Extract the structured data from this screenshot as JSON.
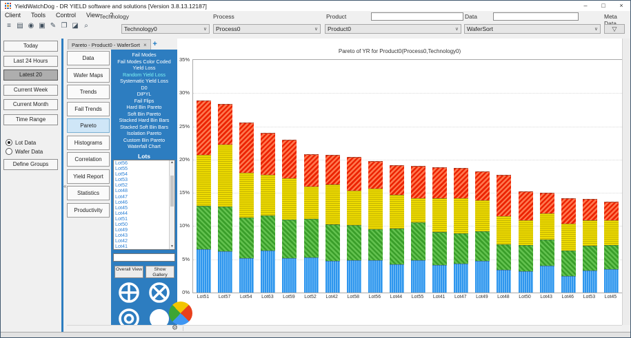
{
  "window": {
    "title": "YieldWatchDog - DR YIELD software and solutions [Version 3.8.13.12187]",
    "controls": [
      {
        "name": "minimize-button",
        "glyph": "–"
      },
      {
        "name": "maximize-button",
        "glyph": "□"
      },
      {
        "name": "close-button",
        "glyph": "×"
      }
    ]
  },
  "menu_bar": {
    "items": [
      "Client",
      "Tools",
      "Control",
      "View",
      "?"
    ]
  },
  "toolbar": {
    "icons": [
      {
        "name": "layout-icon",
        "glyph": "≡"
      },
      {
        "name": "import-icon",
        "glyph": "▤"
      },
      {
        "name": "camera-icon",
        "glyph": "◉"
      },
      {
        "name": "copy-icon",
        "glyph": "▣"
      },
      {
        "name": "edit-pen-icon",
        "glyph": "✎"
      },
      {
        "name": "windows-icon",
        "glyph": "❐"
      },
      {
        "name": "eraser-icon",
        "glyph": "◪"
      },
      {
        "name": "search-icon",
        "glyph": "⌕"
      }
    ],
    "chevron_glyph": "∨",
    "fields": [
      {
        "label": "Technology",
        "value": "Technology0",
        "has_input": false,
        "input_value": ""
      },
      {
        "label": "Process",
        "value": "Process0",
        "has_input": false,
        "input_value": ""
      },
      {
        "label": "Product",
        "value": "Product0",
        "has_input": true,
        "input_value": ""
      },
      {
        "label": "Data",
        "value": "WaferSort",
        "has_input": true,
        "input_value": ""
      }
    ],
    "meta": {
      "label": "Meta Data",
      "filter_glyph": "▽"
    }
  },
  "sidebar": {
    "buttons": [
      {
        "label": "Today",
        "selected": false
      },
      {
        "label": "Last 24 Hours",
        "selected": false
      },
      {
        "label": "Latest 20",
        "selected": true
      },
      {
        "label": "Current Week",
        "selected": false
      },
      {
        "label": "Current Month",
        "selected": false
      },
      {
        "label": "Time Range",
        "selected": false
      }
    ],
    "radios": [
      {
        "label": "Lot Data",
        "checked": true
      },
      {
        "label": "Wafer Data",
        "checked": false
      }
    ],
    "define_groups_label": "Define Groups"
  },
  "splitter": {
    "collapse_glyph": "«"
  },
  "tab_bar": {
    "tabs": [
      {
        "label": "Pareto - Product0 - WaferSort",
        "close_glyph": "×"
      }
    ],
    "add_label": "+"
  },
  "view_tabs": {
    "items": [
      "Data",
      "Wafer Maps",
      "Trends",
      "Fail Trends",
      "Pareto",
      "Histograms",
      "Correlation",
      "Yield Report",
      "Statistics",
      "Productivity"
    ],
    "selected": "Pareto"
  },
  "pareto_panel": {
    "options": [
      "Fail Modes",
      "Fail Modes Color Coded",
      "Yield Loss",
      "Random Yield Loss",
      "Systematic Yield Loss",
      "D0",
      "DIPYL",
      "Fail Flips",
      "Hard Bin Pareto",
      "Soft Bin Pareto",
      "Stacked Hard Bin Bars",
      "Stacked Soft Bin Bars",
      "Isolation Pareto",
      "Custom Bin Pareto",
      "Waterfall Chart"
    ],
    "selected_option": "Random Yield Loss",
    "lots_header": "Lots",
    "lots": [
      "Lot56",
      "Lot55",
      "Lot54",
      "Lot53",
      "Lot52",
      "Lot48",
      "Lot47",
      "Lot46",
      "Lot45",
      "Lot44",
      "Lot51",
      "Lot50",
      "Lot49",
      "Lot43",
      "Lot42",
      "Lot41"
    ],
    "scrollbar": {
      "up_glyph": "▲",
      "down_glyph": "▼"
    },
    "filter_input_value": "",
    "buttons": [
      {
        "label": "Overall View"
      },
      {
        "label": "Show Gallery"
      }
    ],
    "tool_icons": [
      {
        "name": "circle-cross-icon"
      },
      {
        "name": "circle-x-icon"
      },
      {
        "name": "circle-ring-icon"
      },
      {
        "name": "circle-solid-icon"
      }
    ]
  },
  "chart_data": {
    "type": "bar",
    "stacked": true,
    "title": "Pareto of YR for Product0(Process0,Technology0)",
    "categories": [
      "Lot51",
      "Lot57",
      "Lot54",
      "Lot63",
      "Lot59",
      "Lot52",
      "Lot42",
      "Lot58",
      "Lot56",
      "Lot44",
      "Lot55",
      "Lot41",
      "Lot47",
      "Lot49",
      "Lot48",
      "Lot50",
      "Lot43",
      "Lot46",
      "Lot53",
      "Lot45"
    ],
    "series": [
      {
        "name": "blue-vertical-hatch",
        "base_color": "#2e96ee",
        "stripe_color": "#7cc0f5",
        "values": [
          6.5,
          6.2,
          5.2,
          6.3,
          5.2,
          5.3,
          4.8,
          4.9,
          4.9,
          4.2,
          4.9,
          4.1,
          4.4,
          4.8,
          3.4,
          3.2,
          4.0,
          2.5,
          3.3,
          3.5
        ]
      },
      {
        "name": "green-diagonal-hatch",
        "base_color": "#3a9e2a",
        "stripe_color": "#63c24f",
        "values": [
          6.5,
          6.7,
          6.1,
          5.3,
          5.8,
          5.8,
          5.5,
          5.2,
          4.6,
          5.4,
          5.7,
          5.0,
          4.5,
          4.4,
          3.9,
          3.9,
          4.0,
          3.8,
          3.7,
          3.6
        ]
      },
      {
        "name": "yellow-horizontal-hatch",
        "base_color": "#eedb00",
        "stripe_color": "#c2b303",
        "values": [
          7.7,
          9.4,
          6.7,
          6.1,
          6.2,
          4.9,
          6.0,
          5.2,
          6.1,
          5.1,
          3.6,
          5.1,
          5.3,
          4.7,
          4.2,
          3.8,
          3.9,
          4.1,
          3.9,
          3.8
        ]
      },
      {
        "name": "red-diagonal-hatch",
        "base_color": "#ec2301",
        "stripe_color": "#ff7950",
        "values": [
          8.2,
          6.1,
          7.6,
          6.3,
          5.8,
          4.8,
          4.4,
          5.1,
          4.2,
          4.5,
          4.9,
          4.7,
          4.5,
          4.3,
          6.2,
          4.3,
          3.1,
          3.8,
          3.2,
          2.8
        ]
      }
    ],
    "ylim": [
      0,
      35
    ],
    "yticks": [
      "0%",
      "5%",
      "10%",
      "15%",
      "20%",
      "25%",
      "30%",
      "35%"
    ],
    "grid": true,
    "legend": false
  },
  "bottom_bar": {
    "gear_glyph": "⚙"
  },
  "colors": {
    "panel_blue": "#2d7dc0",
    "option_selected": "#7df2f2",
    "lot_text": "#2a7fd4",
    "tab_selected_bg": "#cfe6f7",
    "pie_icon": [
      "#f2c500",
      "#e8401c",
      "#3f96f2",
      "#3da535"
    ],
    "app_icon": [
      "#e2702d",
      "#3f7fbf",
      "#c23b2e",
      "#3f7fbf",
      "#e2a02d",
      "#3f7fbf",
      "#c23b2e",
      "#3f7fbf",
      "#e2702d"
    ]
  }
}
